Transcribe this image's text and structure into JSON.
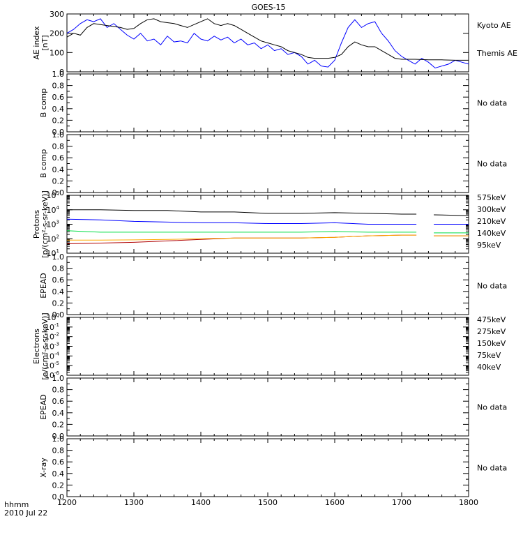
{
  "title": "GOES-15",
  "footer": {
    "line1": "hhmm",
    "line2": "2010 Jul 22"
  },
  "time_axis": {
    "ticks": [
      "1200",
      "1300",
      "1400",
      "1500",
      "1600",
      "1700",
      "1800"
    ],
    "range": [
      1200,
      1800
    ]
  },
  "colors": {
    "black": "#000000",
    "blue": "#0000ff",
    "green": "#00dd44",
    "orange": "#ffaa00",
    "darkred": "#b00000"
  },
  "chart_data": [
    {
      "type": "line",
      "id": "ae",
      "ylabel": [
        "AE index",
        "[nT]"
      ],
      "ylim": [
        0,
        300
      ],
      "yticks": [
        "0",
        "100",
        "200",
        "300"
      ],
      "series": [
        {
          "name": "Kyoto AE",
          "color": "#0000ff",
          "x": [
            1200,
            1210,
            1220,
            1230,
            1240,
            1250,
            1260,
            1270,
            1280,
            1290,
            1300,
            1310,
            1320,
            1330,
            1340,
            1350,
            1360,
            1370,
            1380,
            1390,
            1400,
            1410,
            1420,
            1430,
            1440,
            1450,
            1460,
            1470,
            1480,
            1490,
            1500,
            1510,
            1520,
            1530,
            1540,
            1550,
            1560,
            1570,
            1580,
            1590,
            1600,
            1610,
            1620,
            1630,
            1640,
            1650,
            1660,
            1670,
            1680,
            1690,
            1700,
            1710,
            1720,
            1730,
            1740,
            1750,
            1760,
            1770,
            1780,
            1790,
            1800
          ],
          "values": [
            200,
            220,
            250,
            270,
            260,
            275,
            230,
            250,
            220,
            190,
            170,
            200,
            160,
            170,
            140,
            185,
            155,
            160,
            150,
            200,
            170,
            160,
            185,
            165,
            180,
            150,
            170,
            140,
            150,
            120,
            140,
            110,
            120,
            90,
            100,
            80,
            40,
            60,
            30,
            25,
            60,
            150,
            230,
            270,
            230,
            250,
            260,
            200,
            160,
            110,
            80,
            60,
            40,
            70,
            50,
            20,
            30,
            40,
            60,
            50,
            40
          ]
        },
        {
          "name": "Themis AE",
          "color": "#000000",
          "x": [
            1200,
            1210,
            1220,
            1230,
            1240,
            1250,
            1260,
            1270,
            1280,
            1290,
            1300,
            1310,
            1320,
            1330,
            1340,
            1350,
            1360,
            1370,
            1380,
            1390,
            1400,
            1410,
            1420,
            1430,
            1440,
            1450,
            1460,
            1470,
            1480,
            1490,
            1500,
            1510,
            1520,
            1530,
            1540,
            1550,
            1560,
            1570,
            1580,
            1590,
            1600,
            1610,
            1620,
            1630,
            1640,
            1650,
            1660,
            1670,
            1680,
            1690,
            1700,
            1720,
            1740,
            1760,
            1780,
            1800
          ],
          "values": [
            180,
            200,
            190,
            230,
            250,
            245,
            240,
            235,
            230,
            220,
            225,
            250,
            270,
            275,
            260,
            255,
            250,
            240,
            230,
            245,
            260,
            275,
            250,
            240,
            250,
            240,
            220,
            200,
            180,
            160,
            150,
            140,
            130,
            110,
            100,
            90,
            75,
            70,
            70,
            70,
            75,
            90,
            130,
            155,
            140,
            130,
            130,
            110,
            90,
            70,
            65,
            65,
            62,
            62,
            60,
            60
          ]
        }
      ]
    },
    {
      "type": "line",
      "id": "bcomp1",
      "ylabel": [
        "B comp"
      ],
      "ylim": [
        0,
        1
      ],
      "yticks": [
        "0.0",
        "0.2",
        "0.4",
        "0.6",
        "0.8",
        "1.0"
      ],
      "minor": [
        0.1,
        0.3,
        0.5,
        0.7,
        0.9
      ],
      "nodata": "No data",
      "series": []
    },
    {
      "type": "line",
      "id": "bcomp2",
      "ylabel": [
        "B comp"
      ],
      "ylim": [
        0,
        1
      ],
      "yticks": [
        "0.0",
        "0.2",
        "0.4",
        "0.6",
        "0.8",
        "1.0"
      ],
      "minor": [
        0.1,
        0.3,
        0.5,
        0.7,
        0.9
      ],
      "nodata": "No data",
      "series": []
    },
    {
      "type": "line",
      "id": "protons",
      "log": true,
      "ylabel": [
        "Protons",
        "[p/(cm²-s-sr-keV)]"
      ],
      "ylim": [
        1,
        5
      ],
      "ylog_exponents": [
        1,
        2,
        3,
        4,
        5
      ],
      "series": [
        {
          "name": "575keV",
          "color": "#b00000",
          "x": [
            1200,
            1250,
            1300,
            1350,
            1400,
            1450,
            1500,
            1550,
            1600,
            1650,
            1700,
            1722,
            1748,
            1800
          ],
          "values": [
            1.65,
            1.7,
            1.75,
            1.85,
            1.95,
            2.05,
            2.05,
            2.05,
            2.1,
            2.2,
            2.25,
            2.25,
            2.2,
            2.2
          ]
        },
        {
          "name": "300keV",
          "color": "#ffaa00",
          "x": [
            1200,
            1250,
            1300,
            1350,
            1400,
            1450,
            1500,
            1550,
            1600,
            1650,
            1700,
            1722,
            1748,
            1800
          ],
          "values": [
            1.9,
            1.9,
            1.92,
            1.95,
            2.0,
            2.05,
            2.05,
            2.05,
            2.1,
            2.2,
            2.25,
            2.25,
            2.2,
            2.2
          ]
        },
        {
          "name": "210keV",
          "color": "#00dd44",
          "x": [
            1200,
            1250,
            1300,
            1350,
            1400,
            1450,
            1500,
            1550,
            1600,
            1650,
            1700,
            1722,
            1748,
            1800
          ],
          "values": [
            2.55,
            2.45,
            2.45,
            2.45,
            2.45,
            2.45,
            2.45,
            2.45,
            2.5,
            2.45,
            2.45,
            2.45,
            2.4,
            2.4
          ]
        },
        {
          "name": "140keV",
          "color": "#0000ff",
          "x": [
            1200,
            1250,
            1300,
            1350,
            1400,
            1450,
            1500,
            1550,
            1600,
            1650,
            1700,
            1722,
            1748,
            1800
          ],
          "values": [
            3.35,
            3.3,
            3.2,
            3.15,
            3.1,
            3.1,
            3.05,
            3.05,
            3.1,
            3.0,
            3.0,
            3.0,
            3.0,
            3.0
          ]
        },
        {
          "name": "95keV",
          "color": "#000000",
          "x": [
            1200,
            1250,
            1300,
            1350,
            1400,
            1450,
            1500,
            1550,
            1600,
            1650,
            1700,
            1722,
            1748,
            1800
          ],
          "values": [
            4.0,
            4.0,
            3.95,
            3.95,
            3.85,
            3.85,
            3.75,
            3.75,
            3.8,
            3.75,
            3.7,
            3.7,
            3.65,
            3.6
          ]
        }
      ]
    },
    {
      "type": "line",
      "id": "epead1",
      "ylabel": [
        "EPEAD"
      ],
      "ylim": [
        0,
        1
      ],
      "yticks": [
        "0.0",
        "0.2",
        "0.4",
        "0.6",
        "0.8",
        "1.0"
      ],
      "minor": [
        0.1,
        0.3,
        0.5,
        0.7,
        0.9
      ],
      "nodata": "No data",
      "series": []
    },
    {
      "type": "line",
      "id": "electrons",
      "log": true,
      "ylabel": [
        "Electrons",
        "[e/(cm²-s-sr-keV)]"
      ],
      "ylim": [
        -6,
        0
      ],
      "ylog_exponents": [
        -6,
        -5,
        -4,
        -3,
        -2,
        -1,
        0
      ],
      "legend": [
        "475keV",
        "275keV",
        "150keV",
        "75keV",
        "40keV"
      ],
      "legend_colors": [
        "#b00000",
        "#ffaa00",
        "#00dd44",
        "#0000ff",
        "#000000"
      ],
      "series": []
    },
    {
      "type": "line",
      "id": "epead2",
      "ylabel": [
        "EPEAD"
      ],
      "ylim": [
        0,
        1
      ],
      "yticks": [
        "0.0",
        "0.2",
        "0.4",
        "0.6",
        "0.8",
        "1.0"
      ],
      "minor": [
        0.1,
        0.3,
        0.5,
        0.7,
        0.9
      ],
      "nodata": "No data",
      "series": []
    },
    {
      "type": "line",
      "id": "xray",
      "ylabel": [
        "X-ray"
      ],
      "ylim": [
        0,
        1
      ],
      "yticks": [
        "0.0",
        "0.2",
        "0.4",
        "0.6",
        "0.8",
        "1.0"
      ],
      "minor": [
        0.1,
        0.3,
        0.5,
        0.7,
        0.9
      ],
      "nodata": "No data",
      "series": []
    }
  ]
}
